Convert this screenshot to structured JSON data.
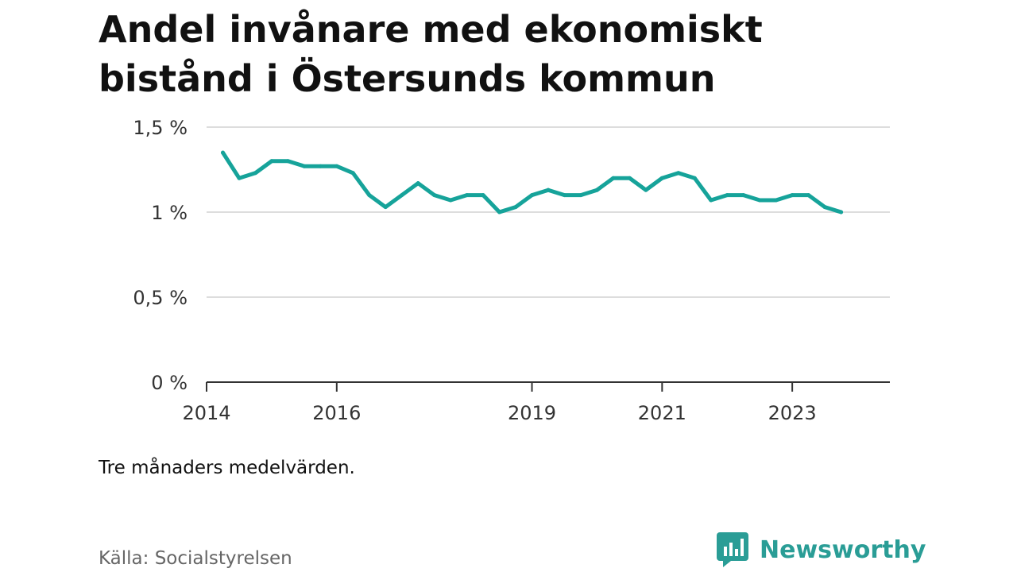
{
  "title": "Andel invånare med ekonomiskt bistånd i Östersunds kommun",
  "note": "Tre månaders medelvärden.",
  "source": "Källa: Socialstyrelsen",
  "brand": {
    "name": "Newsworthy",
    "icon": "bar-chart-speech-bubble-icon"
  },
  "colors": {
    "line": "#16a39a",
    "grid": "#dddddd",
    "axis": "#333333",
    "brand": "#2a9d96"
  },
  "chart_data": {
    "type": "line",
    "title": "Andel invånare med ekonomiskt bistånd i Östersunds kommun",
    "xlabel": "",
    "ylabel": "",
    "ylim": [
      0,
      1.5
    ],
    "y_ticks": [
      {
        "value": 0,
        "label": "0 %"
      },
      {
        "value": 0.5,
        "label": "0,5 %"
      },
      {
        "value": 1,
        "label": "1 %"
      },
      {
        "value": 1.5,
        "label": "1,5 %"
      }
    ],
    "x_ticks": [
      "2014",
      "2016",
      "2019",
      "2021",
      "2023"
    ],
    "x_range": [
      "2014-01",
      "2024-07"
    ],
    "grid": true,
    "series": [
      {
        "x": [
          "2014-04",
          "2014-07",
          "2014-10",
          "2015-01",
          "2015-04",
          "2015-07",
          "2015-10",
          "2016-01",
          "2016-04",
          "2016-07",
          "2016-10",
          "2017-01",
          "2017-04",
          "2017-07",
          "2017-10",
          "2018-01",
          "2018-04",
          "2018-07",
          "2018-10",
          "2019-01",
          "2019-04",
          "2019-07",
          "2019-10",
          "2020-01",
          "2020-04",
          "2020-07",
          "2020-10",
          "2021-01",
          "2021-04",
          "2021-07",
          "2021-10",
          "2022-01",
          "2022-04",
          "2022-07",
          "2022-10",
          "2023-01",
          "2023-04",
          "2023-07",
          "2023-10"
        ],
        "values": [
          1.35,
          1.2,
          1.23,
          1.3,
          1.3,
          1.27,
          1.27,
          1.27,
          1.23,
          1.1,
          1.03,
          1.1,
          1.17,
          1.1,
          1.07,
          1.1,
          1.1,
          1.0,
          1.03,
          1.1,
          1.13,
          1.1,
          1.1,
          1.13,
          1.2,
          1.2,
          1.13,
          1.2,
          1.23,
          1.2,
          1.07,
          1.1,
          1.1,
          1.07,
          1.07,
          1.1,
          1.1,
          1.03,
          1.0
        ]
      }
    ]
  }
}
